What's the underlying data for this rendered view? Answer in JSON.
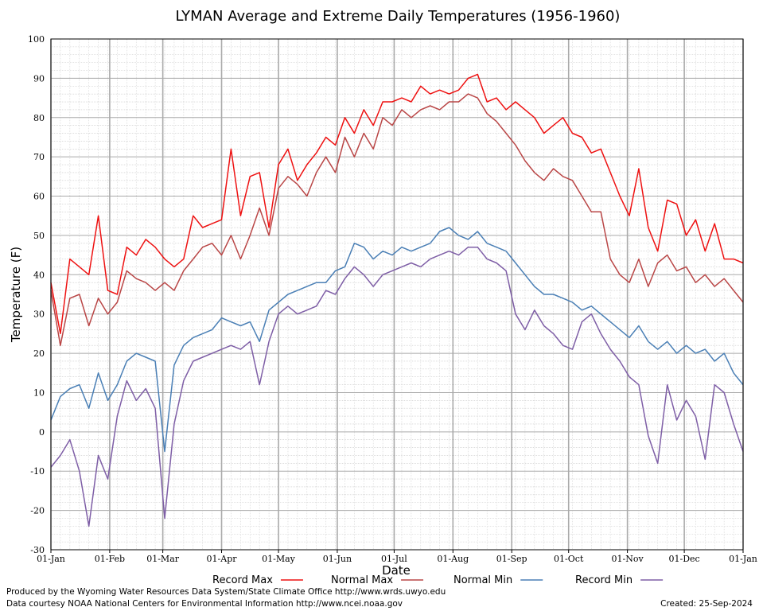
{
  "chart_data": {
    "type": "line",
    "title": "LYMAN Average and Extreme Daily Temperatures (1956-1960)",
    "xlabel": "Date",
    "ylabel": "Temperature (F)",
    "ylim": [
      -30,
      100
    ],
    "y_ticks": [
      -30,
      -20,
      -10,
      0,
      10,
      20,
      30,
      40,
      50,
      60,
      70,
      80,
      90,
      100
    ],
    "x_tick_labels": [
      "01-Jan",
      "01-Feb",
      "01-Mar",
      "01-Apr",
      "01-May",
      "01-Jun",
      "01-Jul",
      "01-Aug",
      "01-Sep",
      "01-Oct",
      "01-Nov",
      "01-Dec",
      "01-Jan"
    ],
    "x_tick_days": [
      0,
      31,
      59,
      90,
      120,
      151,
      181,
      212,
      243,
      273,
      304,
      334,
      365
    ],
    "grid": true,
    "legend_position": "bottom",
    "series": [
      {
        "name": "Record Max",
        "color": "#ee1111",
        "x": [
          0,
          5,
          10,
          15,
          20,
          25,
          30,
          35,
          40,
          45,
          50,
          55,
          60,
          65,
          70,
          75,
          80,
          85,
          90,
          95,
          100,
          105,
          110,
          115,
          120,
          125,
          130,
          135,
          140,
          145,
          150,
          155,
          160,
          165,
          170,
          175,
          180,
          185,
          190,
          195,
          200,
          205,
          210,
          215,
          220,
          225,
          230,
          235,
          240,
          245,
          250,
          255,
          260,
          265,
          270,
          275,
          280,
          285,
          290,
          295,
          300,
          305,
          310,
          315,
          320,
          325,
          330,
          335,
          340,
          345,
          350,
          355,
          360,
          365
        ],
        "values": [
          38,
          25,
          44,
          42,
          40,
          55,
          36,
          35,
          47,
          45,
          49,
          47,
          44,
          42,
          44,
          55,
          52,
          53,
          54,
          72,
          55,
          65,
          66,
          52,
          68,
          72,
          64,
          68,
          71,
          75,
          73,
          80,
          76,
          82,
          78,
          84,
          84,
          85,
          84,
          88,
          86,
          87,
          86,
          87,
          90,
          91,
          84,
          85,
          82,
          84,
          82,
          80,
          76,
          78,
          80,
          76,
          75,
          71,
          72,
          66,
          60,
          55,
          67,
          52,
          46,
          59,
          58,
          50,
          54,
          46,
          53,
          44,
          44,
          43
        ]
      },
      {
        "name": "Normal Max",
        "color": "#b94646",
        "x": [
          0,
          5,
          10,
          15,
          20,
          25,
          30,
          35,
          40,
          45,
          50,
          55,
          60,
          65,
          70,
          75,
          80,
          85,
          90,
          95,
          100,
          105,
          110,
          115,
          120,
          125,
          130,
          135,
          140,
          145,
          150,
          155,
          160,
          165,
          170,
          175,
          180,
          185,
          190,
          195,
          200,
          205,
          210,
          215,
          220,
          225,
          230,
          235,
          240,
          245,
          250,
          255,
          260,
          265,
          270,
          275,
          280,
          285,
          290,
          295,
          300,
          305,
          310,
          315,
          320,
          325,
          330,
          335,
          340,
          345,
          350,
          355,
          360,
          365
        ],
        "values": [
          36,
          22,
          34,
          35,
          27,
          34,
          30,
          33,
          41,
          39,
          38,
          36,
          38,
          36,
          41,
          44,
          47,
          48,
          45,
          50,
          44,
          50,
          57,
          50,
          62,
          65,
          63,
          60,
          66,
          70,
          66,
          75,
          70,
          76,
          72,
          80,
          78,
          82,
          80,
          82,
          83,
          82,
          84,
          84,
          86,
          85,
          81,
          79,
          76,
          73,
          69,
          66,
          64,
          67,
          65,
          64,
          60,
          56,
          56,
          44,
          40,
          38,
          44,
          37,
          43,
          45,
          41,
          42,
          38,
          40,
          37,
          39,
          36,
          33
        ]
      },
      {
        "name": "Normal Min",
        "color": "#4a7fb5",
        "x": [
          0,
          5,
          10,
          15,
          20,
          25,
          30,
          35,
          40,
          45,
          50,
          55,
          60,
          65,
          70,
          75,
          80,
          85,
          90,
          95,
          100,
          105,
          110,
          115,
          120,
          125,
          130,
          135,
          140,
          145,
          150,
          155,
          160,
          165,
          170,
          175,
          180,
          185,
          190,
          195,
          200,
          205,
          210,
          215,
          220,
          225,
          230,
          235,
          240,
          245,
          250,
          255,
          260,
          265,
          270,
          275,
          280,
          285,
          290,
          295,
          300,
          305,
          310,
          315,
          320,
          325,
          330,
          335,
          340,
          345,
          350,
          355,
          360,
          365
        ],
        "values": [
          3,
          9,
          11,
          12,
          6,
          15,
          8,
          12,
          18,
          20,
          19,
          18,
          -5,
          17,
          22,
          24,
          25,
          26,
          29,
          28,
          27,
          28,
          23,
          31,
          33,
          35,
          36,
          37,
          38,
          38,
          41,
          42,
          48,
          47,
          44,
          46,
          45,
          47,
          46,
          47,
          48,
          51,
          52,
          50,
          49,
          51,
          48,
          47,
          46,
          43,
          40,
          37,
          35,
          35,
          34,
          33,
          31,
          32,
          30,
          28,
          26,
          24,
          27,
          23,
          21,
          23,
          20,
          22,
          20,
          21,
          18,
          20,
          15,
          12
        ]
      },
      {
        "name": "Record Min",
        "color": "#7e5ea6",
        "x": [
          0,
          5,
          10,
          15,
          20,
          25,
          30,
          35,
          40,
          45,
          50,
          55,
          60,
          65,
          70,
          75,
          80,
          85,
          90,
          95,
          100,
          105,
          110,
          115,
          120,
          125,
          130,
          135,
          140,
          145,
          150,
          155,
          160,
          165,
          170,
          175,
          180,
          185,
          190,
          195,
          200,
          205,
          210,
          215,
          220,
          225,
          230,
          235,
          240,
          245,
          250,
          255,
          260,
          265,
          270,
          275,
          280,
          285,
          290,
          295,
          300,
          305,
          310,
          315,
          320,
          325,
          330,
          335,
          340,
          345,
          350,
          355,
          360,
          365
        ],
        "values": [
          -9,
          -6,
          -2,
          -10,
          -24,
          -6,
          -12,
          4,
          13,
          8,
          11,
          6,
          -22,
          2,
          13,
          18,
          19,
          20,
          21,
          22,
          21,
          23,
          12,
          23,
          30,
          32,
          30,
          31,
          32,
          36,
          35,
          39,
          42,
          40,
          37,
          40,
          41,
          42,
          43,
          42,
          44,
          45,
          46,
          45,
          47,
          47,
          44,
          43,
          41,
          30,
          26,
          31,
          27,
          25,
          22,
          21,
          28,
          30,
          25,
          21,
          18,
          14,
          12,
          -1,
          -8,
          12,
          3,
          8,
          4,
          -7,
          12,
          10,
          2,
          -5
        ]
      }
    ]
  },
  "footer": {
    "produced_by": "Produced by the Wyoming Water Resources Data System/State Climate Office http://www.wrds.uwyo.edu",
    "data_courtesy": "Data courtesy NOAA National Centers for Environmental Information http://www.ncei.noaa.gov",
    "created": "Created:  25-Sep-2024"
  }
}
